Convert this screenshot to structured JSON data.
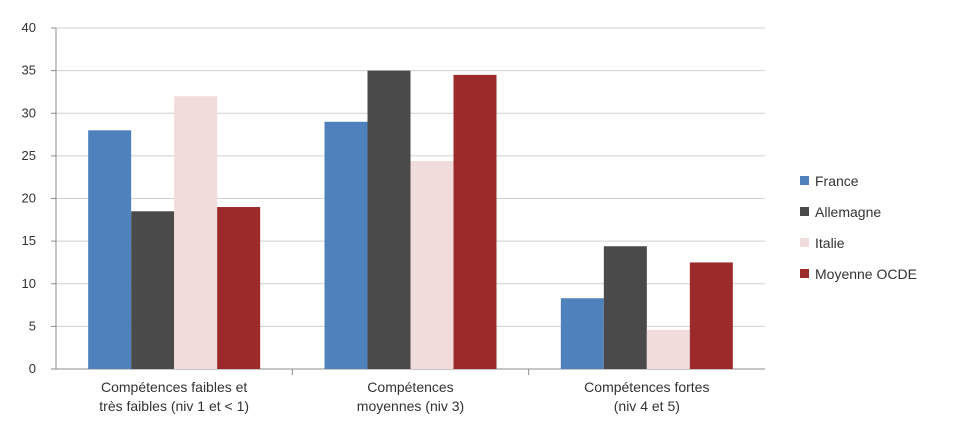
{
  "chart_data": {
    "type": "bar",
    "categories": [
      [
        "Compétences faibles et",
        "très faibles (niv 1 et < 1)"
      ],
      [
        "Compétences",
        "moyennes (niv 3)"
      ],
      [
        "Compétences fortes",
        "(niv 4 et 5)"
      ]
    ],
    "series": [
      {
        "name": "France",
        "color": "#4f81bd",
        "values": [
          28,
          29,
          8.3
        ]
      },
      {
        "name": "Allemagne",
        "color": "#4a4a4a",
        "values": [
          18.5,
          35,
          14.4
        ]
      },
      {
        "name": "Italie",
        "color": "#f2dcdb",
        "values": [
          32,
          24.4,
          4.6
        ]
      },
      {
        "name": "Moyenne OCDE",
        "color": "#9c2a2a",
        "values": [
          19,
          34.5,
          12.5
        ]
      }
    ],
    "ylim": [
      0,
      40
    ],
    "yticks": [
      "0",
      "5",
      "10",
      "15",
      "20",
      "25",
      "30",
      "35",
      "40"
    ],
    "grid": true,
    "legend_position": "right"
  }
}
